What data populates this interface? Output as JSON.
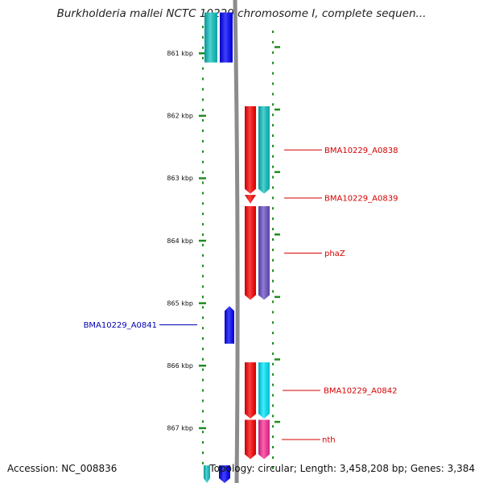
{
  "map": {
    "title": "Burkholderia mallei NCTC 10229 chromosome I, complete sequen...",
    "accession_text": "Accession: NC_008836",
    "summary_text": "Topology: circular; Length: 3,458,208 bp; Genes: 3,384"
  },
  "colors": {
    "backbone": "#8c8c8c",
    "tick": "#1e8c1e",
    "label_red": "#d40000",
    "label_blue": "#0000b4",
    "cds_red": "#ff0000",
    "cds_teal": "#11c4c4",
    "cds_blue": "#0000ff",
    "cds_purple": "#6c52c8",
    "cds_cyan": "#00e8ff",
    "cds_pink": "#ff2d9a"
  },
  "ruler": {
    "unit": "kbp",
    "major_ticks": [
      {
        "value": 861,
        "label": "861 kbp"
      },
      {
        "value": 862,
        "label": "862 kbp"
      },
      {
        "value": 863,
        "label": "863 kbp"
      },
      {
        "value": 864,
        "label": "864 kbp"
      },
      {
        "value": 865,
        "label": "865 kbp"
      },
      {
        "value": 866,
        "label": "866 kbp"
      },
      {
        "value": 867,
        "label": "867 kbp"
      }
    ]
  },
  "features": [
    {
      "id": "f-top-teal",
      "start": 860.35,
      "end": 861.15,
      "strand": "reverse",
      "track": "outer",
      "color": "cds_teal",
      "label": ""
    },
    {
      "id": "f-top-blue",
      "start": 860.35,
      "end": 861.15,
      "strand": "reverse",
      "track": "inner",
      "color": "cds_blue",
      "label": ""
    },
    {
      "id": "f-A0838-red",
      "start": 861.85,
      "end": 863.25,
      "strand": "forward",
      "track": "inner",
      "color": "cds_red",
      "label": ""
    },
    {
      "id": "f-A0838-teal",
      "start": 861.85,
      "end": 863.25,
      "strand": "forward",
      "track": "outer",
      "color": "cds_teal",
      "label": "BMA10229_A0838"
    },
    {
      "id": "f-A0839",
      "start": 863.27,
      "end": 863.37,
      "strand": "forward",
      "track": "inner",
      "color": "cds_red",
      "label": "BMA10229_A0839"
    },
    {
      "id": "f-phaZ-red",
      "start": 863.45,
      "end": 864.95,
      "strand": "forward",
      "track": "inner",
      "color": "cds_red",
      "label": ""
    },
    {
      "id": "f-phaZ-purple",
      "start": 863.45,
      "end": 864.95,
      "strand": "forward",
      "track": "outer",
      "color": "cds_purple",
      "label": "phaZ"
    },
    {
      "id": "f-A0841",
      "start": 865.05,
      "end": 865.65,
      "strand": "reverse",
      "track": "left",
      "color": "cds_blue",
      "label": "BMA10229_A0841"
    },
    {
      "id": "f-A0842-red",
      "start": 865.95,
      "end": 866.85,
      "strand": "forward",
      "track": "inner",
      "color": "cds_red",
      "label": ""
    },
    {
      "id": "f-A0842-cyan",
      "start": 865.95,
      "end": 866.85,
      "strand": "forward",
      "track": "outer",
      "color": "cds_cyan",
      "label": "BMA10229_A0842"
    },
    {
      "id": "f-nth-red",
      "start": 866.87,
      "end": 867.5,
      "strand": "forward",
      "track": "inner",
      "color": "cds_red",
      "label": ""
    },
    {
      "id": "f-nth-pink",
      "start": 866.87,
      "end": 867.5,
      "strand": "forward",
      "track": "outer",
      "color": "cds_pink",
      "label": "nth"
    },
    {
      "id": "f-bottom-teal",
      "start": 867.6,
      "end": 868.2,
      "strand": "forward",
      "track": "far-left",
      "color": "cds_teal",
      "label": ""
    },
    {
      "id": "f-bottom-blue",
      "start": 867.6,
      "end": 868.2,
      "strand": "forward",
      "track": "left-inner",
      "color": "cds_blue",
      "label": ""
    }
  ]
}
